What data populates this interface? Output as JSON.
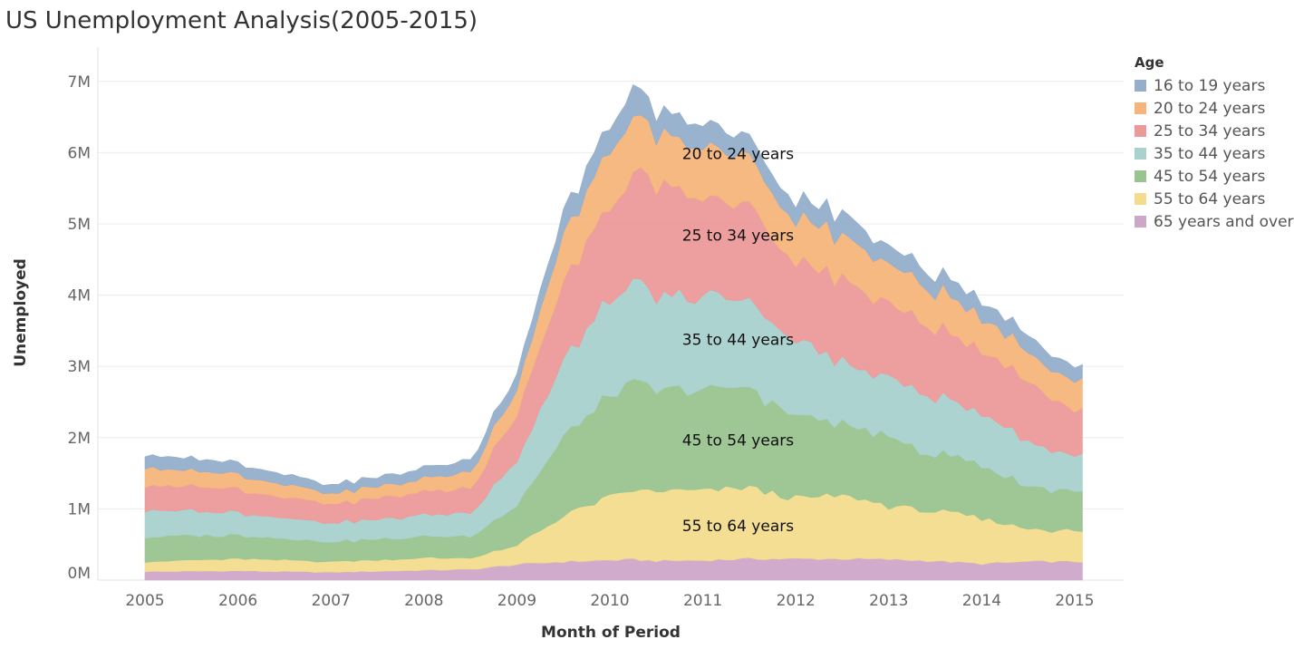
{
  "chart_data": {
    "type": "area",
    "stacked": true,
    "title": "US Unemployment Analysis(2005-2015)",
    "xlabel": "Month of Period",
    "ylabel": "Unemployed",
    "x_range": [
      "2005-01",
      "2015-02"
    ],
    "x_ticks": [
      "2005",
      "2006",
      "2007",
      "2008",
      "2009",
      "2010",
      "2011",
      "2012",
      "2013",
      "2014",
      "2015"
    ],
    "y_ticks": [
      {
        "value": 0,
        "label": "0M"
      },
      {
        "value": 1000000,
        "label": "1M"
      },
      {
        "value": 2000000,
        "label": "2M"
      },
      {
        "value": 3000000,
        "label": "3M"
      },
      {
        "value": 4000000,
        "label": "4M"
      },
      {
        "value": 5000000,
        "label": "5M"
      },
      {
        "value": 6000000,
        "label": "6M"
      },
      {
        "value": 7000000,
        "label": "7M"
      }
    ],
    "ylim": [
      0,
      7500000
    ],
    "grid": true,
    "legend": {
      "title": "Age",
      "placement": "right",
      "entries": [
        "16 to 19 years",
        "20 to 24 years",
        "25 to 34 years",
        "35 to 44 years",
        "45 to 54 years",
        "55 to 64 years",
        "65 years and over"
      ]
    },
    "keyframe_months": [
      "2005-01",
      "2006-01",
      "2007-01",
      "2008-01",
      "2008-07",
      "2009-01",
      "2009-07",
      "2010-01",
      "2010-04",
      "2010-07",
      "2011-01",
      "2011-07",
      "2012-01",
      "2012-07",
      "2013-01",
      "2013-07",
      "2014-01",
      "2014-07",
      "2015-01",
      "2015-02"
    ],
    "series": [
      {
        "name": "65 years and over",
        "color": "#cda7c8",
        "values": [
          120000,
          130000,
          110000,
          140000,
          150000,
          220000,
          260000,
          280000,
          290000,
          270000,
          280000,
          300000,
          300000,
          300000,
          290000,
          270000,
          230000,
          260000,
          260000,
          260000
        ]
      },
      {
        "name": "55 to 64 years",
        "color": "#f3dc8d",
        "values": [
          140000,
          170000,
          150000,
          170000,
          160000,
          260000,
          650000,
          880000,
          960000,
          980000,
          970000,
          1000000,
          840000,
          890000,
          750000,
          700000,
          630000,
          460000,
          430000,
          430000
        ]
      },
      {
        "name": "45 to 54 years",
        "color": "#99c48f",
        "values": [
          350000,
          330000,
          280000,
          300000,
          310000,
          560000,
          1100000,
          1400000,
          1500000,
          1400000,
          1400000,
          1400000,
          1150000,
          1000000,
          960000,
          800000,
          750000,
          600000,
          560000,
          560000
        ]
      },
      {
        "name": "35 to 44 years",
        "color": "#a9d1ce",
        "values": [
          380000,
          320000,
          260000,
          300000,
          330000,
          630000,
          1100000,
          1300000,
          1400000,
          1300000,
          1300000,
          1250000,
          1050000,
          850000,
          850000,
          800000,
          720000,
          620000,
          500000,
          500000
        ]
      },
      {
        "name": "25 to 34 years",
        "color": "#ec999a",
        "values": [
          360000,
          320000,
          260000,
          320000,
          350000,
          650000,
          1100000,
          1350000,
          1550000,
          1500000,
          1400000,
          1300000,
          1100000,
          1180000,
          1050000,
          950000,
          900000,
          850000,
          650000,
          640000
        ]
      },
      {
        "name": "20 to 24 years",
        "color": "#f5b57a",
        "values": [
          250000,
          200000,
          150000,
          180000,
          230000,
          350000,
          650000,
          780000,
          800000,
          700000,
          720000,
          680000,
          600000,
          600000,
          550000,
          520000,
          460000,
          420000,
          400000,
          400000
        ]
      },
      {
        "name": "16 to 19 years",
        "color": "#94aecb",
        "values": [
          180000,
          160000,
          120000,
          150000,
          170000,
          230000,
          320000,
          350000,
          430000,
          310000,
          330000,
          280000,
          260000,
          300000,
          250000,
          240000,
          240000,
          230000,
          200000,
          200000
        ]
      }
    ],
    "area_labels": [
      {
        "series": "20 to 24 years",
        "text": "20 to 24 years"
      },
      {
        "series": "25 to 34 years",
        "text": "25 to 34 years"
      },
      {
        "series": "35 to 44 years",
        "text": "35 to 44 years"
      },
      {
        "series": "45 to 54 years",
        "text": "45 to 54 years"
      },
      {
        "series": "55 to 64 years",
        "text": "55 to 64 years"
      }
    ]
  }
}
